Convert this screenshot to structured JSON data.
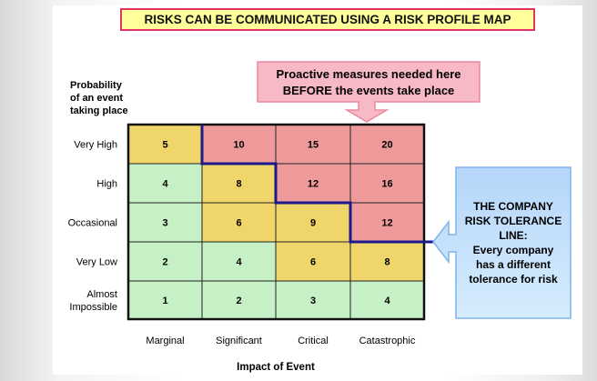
{
  "title": "RISKS CAN BE COMMUNICATED USING A RISK PROFILE MAP",
  "y_axis_label": [
    "Probability",
    "of an event",
    "taking place"
  ],
  "x_axis_label": "Impact of Event",
  "rows": [
    {
      "label": [
        "Very High"
      ],
      "values": [
        5,
        10,
        15,
        20
      ],
      "zones": [
        "amber",
        "red",
        "red",
        "red"
      ]
    },
    {
      "label": [
        "High"
      ],
      "values": [
        4,
        8,
        12,
        16
      ],
      "zones": [
        "green",
        "amber",
        "red",
        "red"
      ]
    },
    {
      "label": [
        "Occasional"
      ],
      "values": [
        3,
        6,
        9,
        12
      ],
      "zones": [
        "green",
        "amber",
        "amber",
        "red"
      ]
    },
    {
      "label": [
        "Very Low"
      ],
      "values": [
        2,
        4,
        6,
        8
      ],
      "zones": [
        "green",
        "green",
        "amber",
        "amber"
      ]
    },
    {
      "label": [
        "Almost",
        "Impossible"
      ],
      "values": [
        1,
        2,
        3,
        4
      ],
      "zones": [
        "green",
        "green",
        "green",
        "green"
      ]
    }
  ],
  "columns": [
    "Marginal",
    "Significant",
    "Critical",
    "Catastrophic"
  ],
  "colors": {
    "green": "#c6f0c6",
    "amber": "#f0d56a",
    "red": "#ef9a9a",
    "tolerance_line": "#1a1a8c",
    "title_fill": "#ffff99",
    "title_border": "#e0336a",
    "top_callout": "#f7b9c6",
    "side_callout": "#bcdcfa"
  },
  "top_callout": [
    "Proactive measures needed here",
    "BEFORE the events take place"
  ],
  "side_callout": [
    "THE COMPANY",
    "RISK TOLERANCE",
    "LINE:",
    "Every company",
    "has a different",
    "tolerance for risk"
  ]
}
